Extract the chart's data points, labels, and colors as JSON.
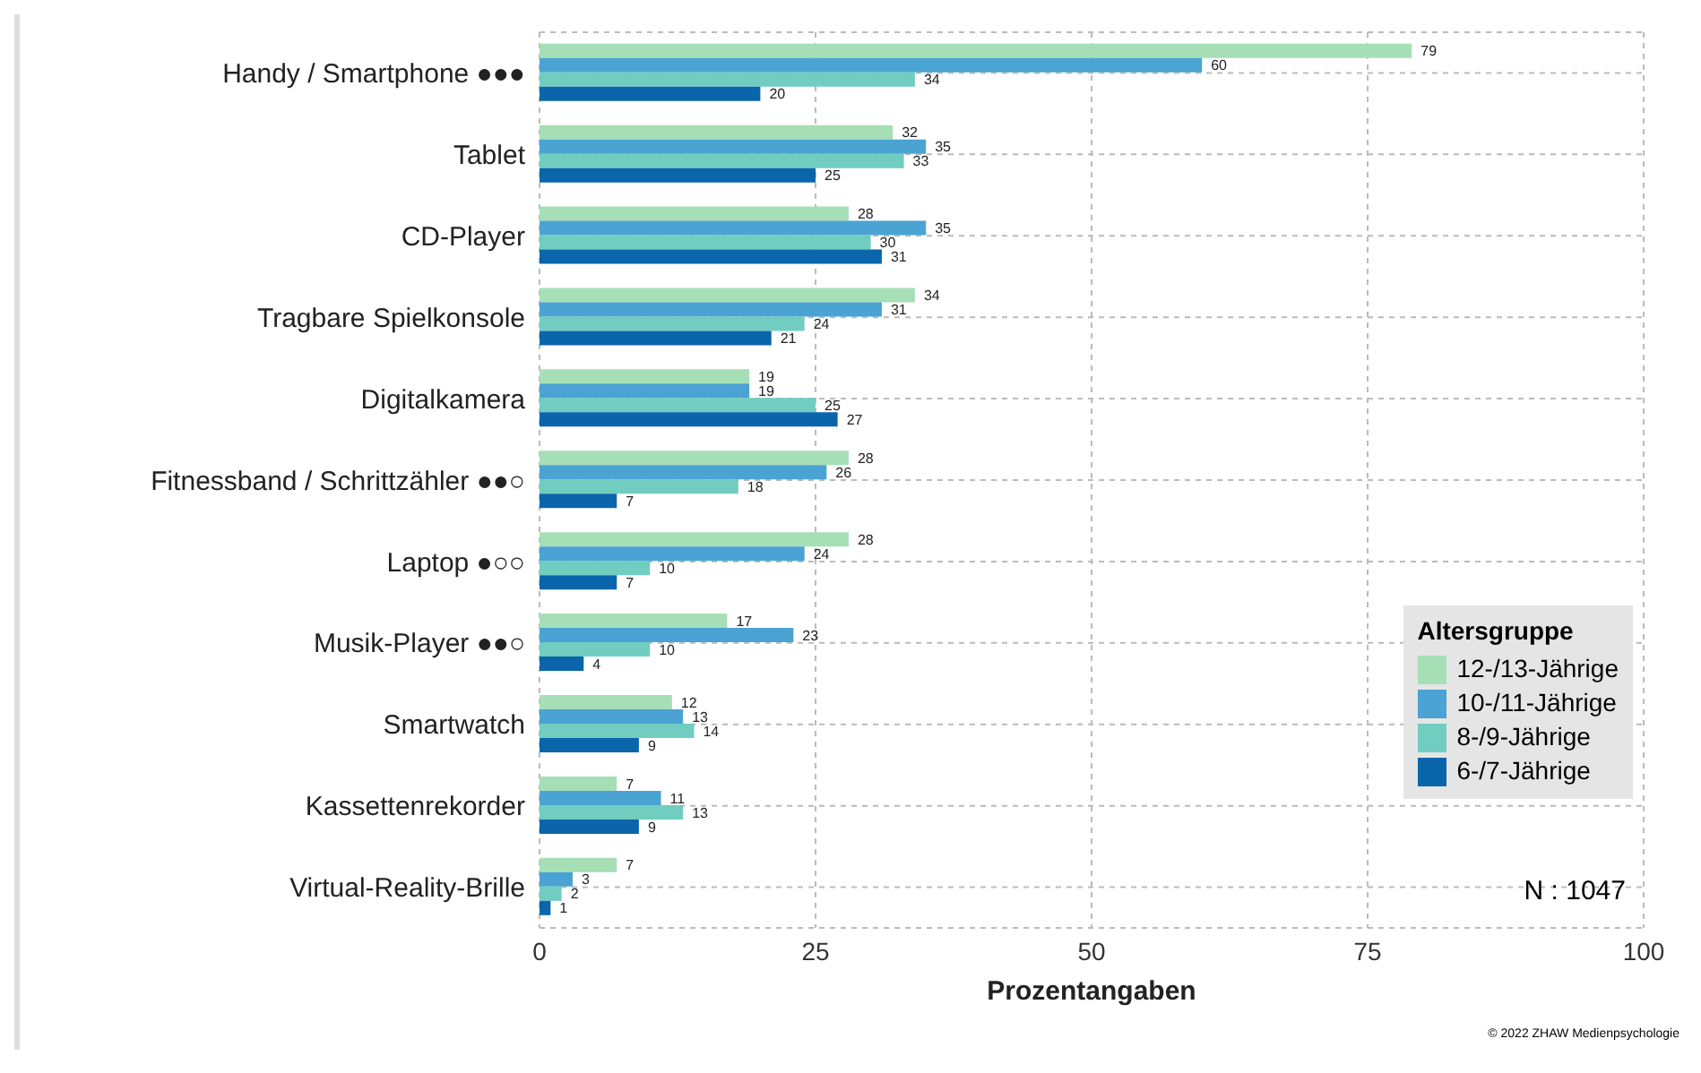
{
  "chart_data": {
    "type": "bar",
    "orientation": "horizontal",
    "xlabel": "Prozentangaben",
    "legend_title": "Altersgruppe",
    "legend": "bottom right",
    "grid": true,
    "data_labels": true,
    "categories": [
      "Handy / Smartphone ●●●",
      "Tablet",
      "CD-Player",
      "Tragbare Spielkonsole",
      "Digitalkamera",
      "Fitnessband / Schrittzähler ●●○",
      "Laptop ●○○",
      "Musik-Player ●●○",
      "Smartwatch",
      "Kassettenrekorder",
      "Virtual-Reality-Brille"
    ],
    "xlim": [
      0,
      100
    ],
    "xticks": [
      0,
      25,
      50,
      75,
      100
    ],
    "series": [
      {
        "name": "12-/13-Jährige",
        "color": "#a6dfb6",
        "values": [
          79,
          32,
          28,
          34,
          19,
          28,
          28,
          17,
          12,
          7,
          7
        ]
      },
      {
        "name": "10-/11-Jährige",
        "color": "#4aa3d3",
        "values": [
          60,
          35,
          35,
          31,
          19,
          26,
          24,
          23,
          13,
          11,
          3
        ]
      },
      {
        "name": "8-/9-Jährige",
        "color": "#70cdc0",
        "values": [
          34,
          33,
          30,
          24,
          25,
          18,
          10,
          10,
          14,
          13,
          2
        ]
      },
      {
        "name": "6-/7-Jährige",
        "color": "#0b65aa",
        "values": [
          20,
          25,
          31,
          21,
          27,
          7,
          7,
          4,
          9,
          9,
          1
        ]
      }
    ],
    "annotations": [
      "N : 1047",
      "© 2022 ZHAW Medienpsychologie"
    ]
  }
}
